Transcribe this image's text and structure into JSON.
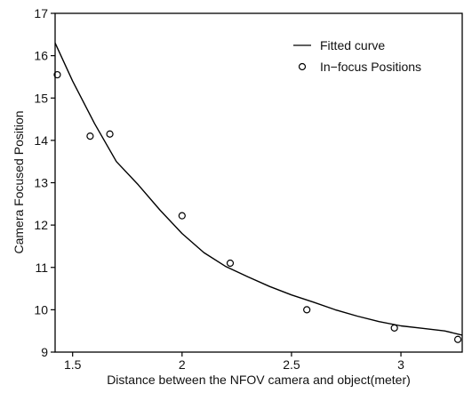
{
  "chart_data": {
    "type": "scatter",
    "xlabel": "Distance between the NFOV camera and object(meter)",
    "ylabel": "Camera Focused Position",
    "xlim": [
      1.42,
      3.28
    ],
    "ylim": [
      9,
      17
    ],
    "xticks": [
      1.5,
      2,
      2.5,
      3
    ],
    "xtick_labels": [
      "1.5",
      "2",
      "2.5",
      "3"
    ],
    "yticks": [
      9,
      10,
      11,
      12,
      13,
      14,
      15,
      16,
      17
    ],
    "ytick_labels": [
      "9",
      "10",
      "11",
      "12",
      "13",
      "14",
      "15",
      "16",
      "17"
    ],
    "grid": false,
    "legend_position": "top-right",
    "series": [
      {
        "name": "Fitted curve",
        "kind": "line",
        "color": "#000000",
        "x": [
          1.42,
          1.5,
          1.6,
          1.7,
          1.8,
          1.9,
          2.0,
          2.1,
          2.2,
          2.3,
          2.4,
          2.5,
          2.6,
          2.7,
          2.8,
          2.9,
          3.0,
          3.1,
          3.2,
          3.28
        ],
        "y": [
          16.3,
          15.4,
          14.4,
          13.5,
          12.95,
          12.35,
          11.8,
          11.35,
          11.02,
          10.78,
          10.55,
          10.35,
          10.18,
          10.0,
          9.85,
          9.72,
          9.62,
          9.56,
          9.5,
          9.4
        ]
      },
      {
        "name": "In-focus Positions",
        "kind": "scatter",
        "marker": "open-circle",
        "color": "#000000",
        "x": [
          1.43,
          1.58,
          1.67,
          2.0,
          2.22,
          2.57,
          2.97,
          3.26
        ],
        "y": [
          15.55,
          14.1,
          14.15,
          12.22,
          11.1,
          10.0,
          9.57,
          9.3
        ]
      }
    ],
    "legend": [
      {
        "label": "Fitted curve",
        "symbol": "line"
      },
      {
        "label": "In−focus Positions",
        "symbol": "open-circle"
      }
    ]
  }
}
